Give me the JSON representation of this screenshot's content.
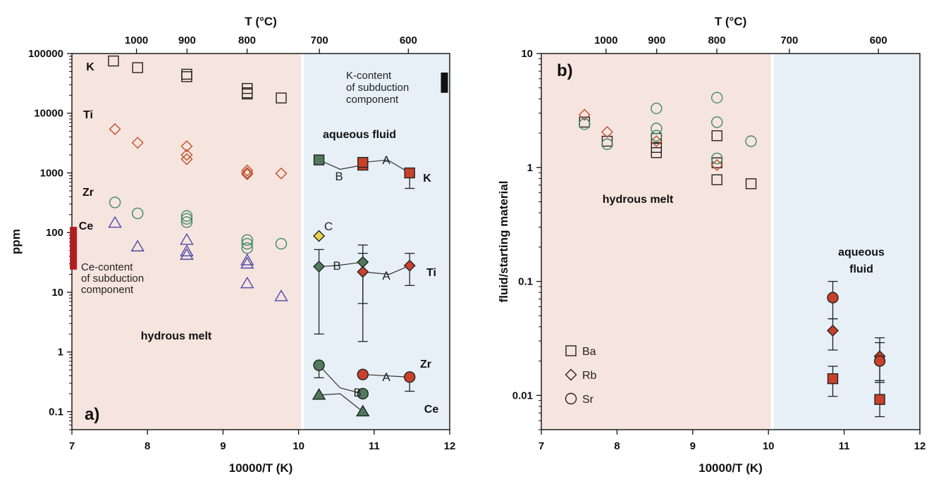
{
  "figure": {
    "top_axis_label": "T (°C)",
    "bottom_axis_label": "10000/T (K)"
  },
  "chart_data": [
    {
      "type": "scatter",
      "panel_label": "a)",
      "ylabel": "ppm",
      "xlabel": "10000/T (K)",
      "top_xlabel": "T (°C)",
      "xlim": [
        7,
        12
      ],
      "ylim": [
        0.05,
        100000
      ],
      "yscale": "log",
      "x_ticks": [
        7,
        8,
        9,
        10,
        11,
        12
      ],
      "y_ticks": [
        {
          "value": 100000,
          "label": "100000"
        },
        {
          "value": 10000,
          "label": "10000"
        },
        {
          "value": 1000,
          "label": "1000"
        },
        {
          "value": 100,
          "label": "100"
        },
        {
          "value": 10,
          "label": "10"
        },
        {
          "value": 1,
          "label": "1"
        },
        {
          "value": 0.1,
          "label": "0.1"
        }
      ],
      "top_ticks_C": [
        1000,
        900,
        800,
        700,
        600
      ],
      "regions": [
        {
          "label": "hydrous melt",
          "x_range": [
            7,
            10.05
          ],
          "color": "#f6e4de"
        },
        {
          "label": "aqueous fluid",
          "x_range": [
            10.05,
            12
          ],
          "color": "#e7f0f7"
        }
      ],
      "annotations": [
        {
          "text": "K-content of subduction component",
          "lines": [
            "K-content",
            "of subduction",
            "component"
          ]
        },
        {
          "text": "Ce-content of subduction component",
          "lines": [
            "Ce-content",
            "of subduction",
            "component"
          ]
        }
      ],
      "element_labels": [
        "K",
        "Ti",
        "Zr",
        "Ce"
      ],
      "fluid_element_labels": [
        "K",
        "Ti",
        "Zr",
        "Ce"
      ],
      "bars": [
        {
          "name": "K-content bar",
          "x": 11.93,
          "y_range": [
            22000,
            48000
          ],
          "color": "#111111"
        },
        {
          "name": "Ce-content bar",
          "x": 7.02,
          "y_range": [
            24,
            125
          ],
          "color": "#b01e1e"
        }
      ],
      "series": [
        {
          "name": "K",
          "phase": "melt",
          "marker": "square-open",
          "color": "#222222",
          "points": [
            [
              7.55,
              75000
            ],
            [
              7.87,
              58000
            ],
            [
              8.52,
              45000
            ],
            [
              8.52,
              41000
            ],
            [
              9.32,
              26000
            ],
            [
              9.32,
              22000
            ],
            [
              9.32,
              21000
            ],
            [
              9.77,
              18000
            ]
          ]
        },
        {
          "name": "Ti",
          "phase": "melt",
          "marker": "diamond-open",
          "color": "#c0502e",
          "points": [
            [
              7.57,
              5400
            ],
            [
              7.87,
              3200
            ],
            [
              8.52,
              2800
            ],
            [
              8.52,
              2000
            ],
            [
              8.52,
              1700
            ],
            [
              9.32,
              1100
            ],
            [
              9.32,
              1000
            ],
            [
              9.32,
              950
            ],
            [
              9.77,
              980
            ]
          ]
        },
        {
          "name": "Zr",
          "phase": "melt",
          "marker": "circle-open",
          "color": "#3f8a68",
          "points": [
            [
              7.57,
              320
            ],
            [
              7.87,
              210
            ],
            [
              8.52,
              190
            ],
            [
              8.52,
              170
            ],
            [
              8.52,
              150
            ],
            [
              9.32,
              75
            ],
            [
              9.32,
              65
            ],
            [
              9.32,
              55
            ],
            [
              9.77,
              65
            ]
          ]
        },
        {
          "name": "Ce",
          "phase": "melt",
          "marker": "triangle-open",
          "color": "#4a4aa8",
          "points": [
            [
              7.57,
              145
            ],
            [
              7.87,
              58
            ],
            [
              8.52,
              75
            ],
            [
              8.52,
              48
            ],
            [
              8.52,
              42
            ],
            [
              9.32,
              34
            ],
            [
              9.32,
              30
            ],
            [
              9.32,
              14
            ],
            [
              9.77,
              8.5
            ]
          ]
        },
        {
          "name": "K",
          "phase": "fluid",
          "marker": "square-filled",
          "points": [
            {
              "x": 10.27,
              "y": 1650,
              "color": "#4f7a5c",
              "label": ""
            },
            {
              "x": 10.85,
              "y": 1350,
              "color": "#c9412a",
              "label": ""
            },
            {
              "x": 10.85,
              "y": 1500,
              "color": "#c9412a",
              "label": ""
            },
            {
              "x": 11.47,
              "y": 1000,
              "color": "#c9412a",
              "label": "",
              "err": [
                550,
                1000
              ]
            }
          ]
        },
        {
          "name": "Ti",
          "phase": "fluid",
          "marker": "diamond-filled",
          "points": [
            {
              "x": 10.27,
              "y": 88,
              "color": "#e8d34a",
              "label": "C"
            },
            {
              "x": 10.27,
              "y": 27,
              "color": "#4f7a5c",
              "err": [
                2,
                52
              ]
            },
            {
              "x": 10.85,
              "y": 32,
              "color": "#4f7a5c",
              "err": [
                6.5,
                62
              ]
            },
            {
              "x": 10.85,
              "y": 22,
              "color": "#c9412a",
              "err": [
                1.5,
                45
              ]
            },
            {
              "x": 11.47,
              "y": 28,
              "color": "#c9412a",
              "err": [
                13,
                45
              ]
            }
          ]
        },
        {
          "name": "Zr",
          "phase": "fluid",
          "marker": "circle-filled",
          "points": [
            {
              "x": 10.27,
              "y": 0.6,
              "color": "#4f7a5c",
              "err": [
                0.37,
                0.6
              ]
            },
            {
              "x": 10.85,
              "y": 0.2,
              "color": "#4f7a5c"
            },
            {
              "x": 10.85,
              "y": 0.42,
              "color": "#c9412a"
            },
            {
              "x": 11.47,
              "y": 0.38,
              "color": "#c9412a",
              "err": [
                0.22,
                0.38
              ]
            }
          ]
        },
        {
          "name": "Ce",
          "phase": "fluid",
          "marker": "triangle-filled",
          "points": [
            {
              "x": 10.27,
              "y": 0.19,
              "color": "#4f7a5c"
            },
            {
              "x": 10.85,
              "y": 0.1,
              "color": "#4f7a5c"
            }
          ]
        }
      ],
      "connector_labels": [
        "A",
        "B",
        "C"
      ]
    },
    {
      "type": "scatter",
      "panel_label": "b)",
      "ylabel": "fluid/starting material",
      "xlabel": "10000/T (K)",
      "top_xlabel": "T (°C)",
      "xlim": [
        7,
        12
      ],
      "ylim": [
        0.005,
        10
      ],
      "yscale": "log",
      "x_ticks": [
        7,
        8,
        9,
        10,
        11,
        12
      ],
      "y_ticks": [
        {
          "value": 10,
          "label": "10"
        },
        {
          "value": 1,
          "label": "1"
        },
        {
          "value": 0.1,
          "label": "0.1"
        },
        {
          "value": 0.01,
          "label": "0.01"
        }
      ],
      "top_ticks_C": [
        1000,
        900,
        800,
        700,
        600
      ],
      "regions": [
        {
          "label": "hydrous melt",
          "x_range": [
            7,
            10.05
          ],
          "color": "#f6e4de"
        },
        {
          "label": "aqueous fluid",
          "lines": [
            "aqueous",
            "fluid"
          ],
          "x_range": [
            10.05,
            12
          ],
          "color": "#e7f0f7"
        }
      ],
      "legend": {
        "placement": "bottom-left",
        "entries": [
          {
            "name": "Ba",
            "marker": "square-open"
          },
          {
            "name": "Rb",
            "marker": "diamond-open"
          },
          {
            "name": "Sr",
            "marker": "circle-open"
          }
        ]
      },
      "series": [
        {
          "name": "Ba",
          "phase": "melt",
          "marker": "square-open",
          "color": "#222222",
          "points": [
            [
              7.57,
              2.5
            ],
            [
              7.87,
              1.7
            ],
            [
              8.52,
              1.8
            ],
            [
              8.52,
              1.5
            ],
            [
              8.52,
              1.35
            ],
            [
              9.32,
              1.9
            ],
            [
              9.32,
              1.1
            ],
            [
              9.32,
              0.78
            ],
            [
              9.77,
              0.72
            ]
          ]
        },
        {
          "name": "Rb",
          "phase": "melt",
          "marker": "diamond-open",
          "color": "#c0502e",
          "points": [
            [
              7.57,
              2.9
            ],
            [
              7.87,
              2.05
            ],
            [
              8.52,
              1.7
            ],
            [
              9.32,
              1.05
            ]
          ]
        },
        {
          "name": "Sr",
          "phase": "melt",
          "marker": "circle-open",
          "color": "#3f8a68",
          "points": [
            [
              7.57,
              2.4
            ],
            [
              7.87,
              1.6
            ],
            [
              8.52,
              3.3
            ],
            [
              8.52,
              2.2
            ],
            [
              8.52,
              1.9
            ],
            [
              9.32,
              4.1
            ],
            [
              9.32,
              2.5
            ],
            [
              9.32,
              1.2
            ],
            [
              9.77,
              1.7
            ]
          ]
        },
        {
          "name": "Ba",
          "phase": "fluid",
          "marker": "square-filled",
          "color": "#c9412a",
          "points": [
            {
              "x": 10.85,
              "y": 0.014,
              "err": [
                0.0098,
                0.018
              ]
            },
            {
              "x": 11.47,
              "y": 0.0092,
              "err": [
                0.0065,
                0.013
              ]
            }
          ]
        },
        {
          "name": "Rb",
          "phase": "fluid",
          "marker": "diamond-filled",
          "color": "#c9412a",
          "points": [
            {
              "x": 10.85,
              "y": 0.037,
              "err": [
                0.025,
                0.047
              ]
            },
            {
              "x": 11.47,
              "y": 0.022,
              "err": [
                0.013,
                0.029
              ]
            }
          ]
        },
        {
          "name": "Sr",
          "phase": "fluid",
          "marker": "circle-filled",
          "color": "#c9412a",
          "points": [
            {
              "x": 10.85,
              "y": 0.072,
              "err": [
                0.047,
                0.1
              ]
            },
            {
              "x": 11.47,
              "y": 0.02,
              "err": [
                0.0135,
                0.032
              ]
            }
          ]
        }
      ]
    }
  ]
}
